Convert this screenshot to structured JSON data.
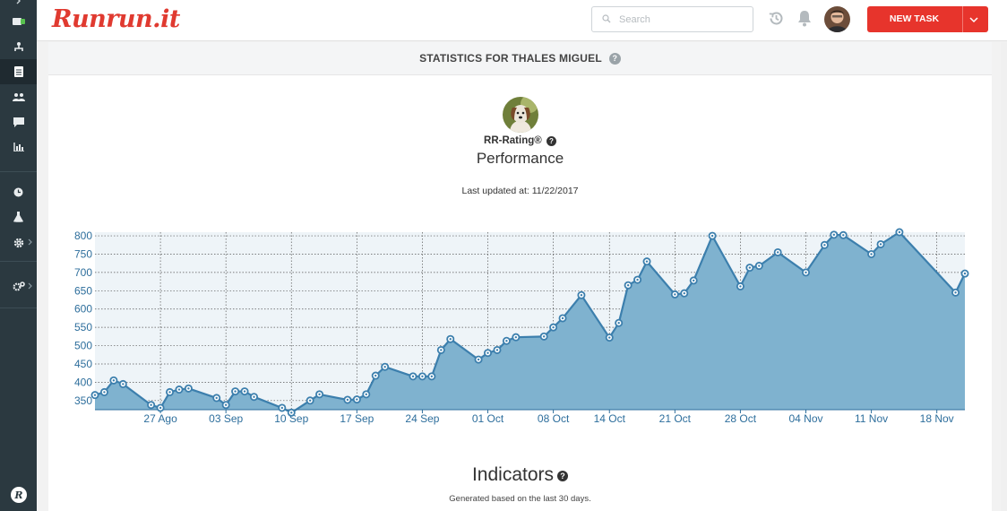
{
  "app": {
    "logo_text": "Runrun.it",
    "search_placeholder": "Search",
    "new_task_label": "NEW TASK",
    "accent": "#e7342c",
    "sidebar_bg": "#2b3940"
  },
  "sidebar": {
    "items": [
      {
        "icon": "chevron-right-icon"
      },
      {
        "icon": "toggle-icon"
      },
      {
        "icon": "org-icon"
      },
      {
        "icon": "document-icon"
      },
      {
        "icon": "team-icon"
      },
      {
        "icon": "chat-icon"
      },
      {
        "icon": "bar-chart-icon"
      },
      {
        "icon": "clock-icon"
      },
      {
        "icon": "flask-icon"
      },
      {
        "icon": "gear-icon"
      },
      {
        "icon": "gears-icon"
      },
      {
        "icon": "runrun-logo-icon"
      }
    ]
  },
  "page": {
    "title": "STATISTICS FOR THALES MIGUEL",
    "rating_label": "RR-Rating®",
    "performance_label": "Performance",
    "last_updated": "Last updated at: 11/22/2017",
    "indicators_title": "Indicators",
    "indicators_subtitle": "Generated based on the last 30 days."
  },
  "chart_data": {
    "type": "area",
    "ylim": [
      325,
      810
    ],
    "yticks": [
      350,
      400,
      450,
      500,
      550,
      600,
      650,
      700,
      750,
      800
    ],
    "x_dates_start": "2017-08-20",
    "xticks": [
      {
        "label": "27 Ago",
        "date": "2017-08-27"
      },
      {
        "label": "03 Sep",
        "date": "2017-09-03"
      },
      {
        "label": "10 Sep",
        "date": "2017-09-10"
      },
      {
        "label": "17 Sep",
        "date": "2017-09-17"
      },
      {
        "label": "24 Sep",
        "date": "2017-09-24"
      },
      {
        "label": "01 Oct",
        "date": "2017-10-01"
      },
      {
        "label": "08 Oct",
        "date": "2017-10-08"
      },
      {
        "label": "14 Oct",
        "date": "2017-10-14"
      },
      {
        "label": "21 Oct",
        "date": "2017-10-21"
      },
      {
        "label": "28 Oct",
        "date": "2017-10-28"
      },
      {
        "label": "04 Nov",
        "date": "2017-11-04"
      },
      {
        "label": "11 Nov",
        "date": "2017-11-11"
      },
      {
        "label": "18 Nov",
        "date": "2017-11-18"
      }
    ],
    "grid": true,
    "line_color": "#3c7fad",
    "fill_color": "#7fb2cf",
    "series": [
      {
        "points": [
          [
            "2017-08-20",
            365
          ],
          [
            "2017-08-21",
            373
          ],
          [
            "2017-08-22",
            405
          ],
          [
            "2017-08-23",
            395
          ],
          [
            "2017-08-26",
            338
          ],
          [
            "2017-08-27",
            330
          ],
          [
            "2017-08-28",
            373
          ],
          [
            "2017-08-29",
            380
          ],
          [
            "2017-08-30",
            383
          ],
          [
            "2017-09-02",
            357
          ],
          [
            "2017-09-03",
            338
          ],
          [
            "2017-09-04",
            375
          ],
          [
            "2017-09-05",
            375
          ],
          [
            "2017-09-06",
            360
          ],
          [
            "2017-09-09",
            330
          ],
          [
            "2017-09-10",
            317
          ],
          [
            "2017-09-12",
            350
          ],
          [
            "2017-09-13",
            367
          ],
          [
            "2017-09-16",
            352
          ],
          [
            "2017-09-17",
            353
          ],
          [
            "2017-09-18",
            367
          ],
          [
            "2017-09-19",
            418
          ],
          [
            "2017-09-20",
            442
          ],
          [
            "2017-09-23",
            416
          ],
          [
            "2017-09-24",
            416
          ],
          [
            "2017-09-25",
            416
          ],
          [
            "2017-09-26",
            488
          ],
          [
            "2017-09-27",
            518
          ],
          [
            "2017-09-30",
            462
          ],
          [
            "2017-10-01",
            480
          ],
          [
            "2017-10-02",
            488
          ],
          [
            "2017-10-03",
            513
          ],
          [
            "2017-10-04",
            523
          ],
          [
            "2017-10-07",
            525
          ],
          [
            "2017-10-08",
            550
          ],
          [
            "2017-10-09",
            575
          ],
          [
            "2017-10-11",
            638
          ],
          [
            "2017-10-14",
            522
          ],
          [
            "2017-10-15",
            562
          ],
          [
            "2017-10-16",
            665
          ],
          [
            "2017-10-17",
            680
          ],
          [
            "2017-10-18",
            730
          ],
          [
            "2017-10-21",
            640
          ],
          [
            "2017-10-22",
            643
          ],
          [
            "2017-10-23",
            678
          ],
          [
            "2017-10-25",
            800
          ],
          [
            "2017-10-28",
            662
          ],
          [
            "2017-10-29",
            713
          ],
          [
            "2017-10-30",
            718
          ],
          [
            "2017-11-01",
            755
          ],
          [
            "2017-11-04",
            700
          ],
          [
            "2017-11-06",
            775
          ],
          [
            "2017-11-07",
            803
          ],
          [
            "2017-11-08",
            802
          ],
          [
            "2017-11-11",
            750
          ],
          [
            "2017-11-12",
            777
          ],
          [
            "2017-11-14",
            810
          ],
          [
            "2017-11-20",
            645
          ],
          [
            "2017-11-21",
            697
          ]
        ]
      }
    ]
  }
}
